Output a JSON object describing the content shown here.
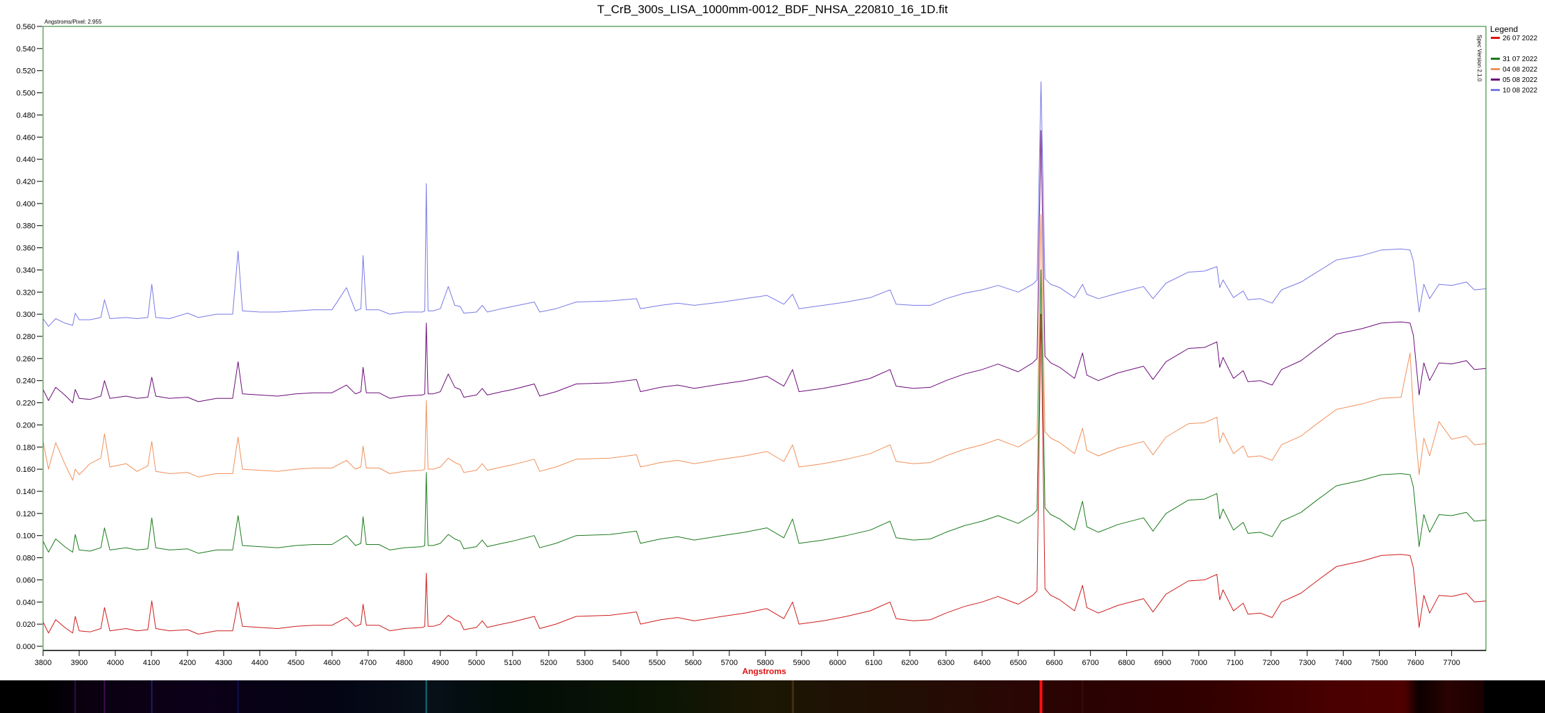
{
  "chart_data": {
    "type": "line",
    "title": "T_CrB_300s_LISA_1000mm-0012_BDF_NHSA_220810_16_1D.fit",
    "xlabel": "Angstroms",
    "ylabel": "",
    "corner_note": "Angstroms/Pixel: 2.955",
    "version_note": "Spec Version 2.1.0",
    "legend_title": "Legend",
    "legend_position": "right",
    "grid": false,
    "xlim": [
      3800,
      7795
    ],
    "ylim": [
      0,
      0.56
    ],
    "x_ticks": [
      "3800",
      "3900",
      "4000",
      "4100",
      "4200",
      "4300",
      "4400",
      "4500",
      "4600",
      "4700",
      "4800",
      "4900",
      "5000",
      "5100",
      "5200",
      "5300",
      "5400",
      "5500",
      "5600",
      "5700",
      "5800",
      "5900",
      "6000",
      "6100",
      "6200",
      "6300",
      "6400",
      "6500",
      "6600",
      "6700",
      "6800",
      "6900",
      "7000",
      "7100",
      "7200",
      "7300",
      "7400",
      "7500",
      "7600",
      "7700"
    ],
    "y_ticks": [
      "0.000",
      "0.020",
      "0.040",
      "0.060",
      "0.080",
      "0.100",
      "0.120",
      "0.140",
      "0.160",
      "0.180",
      "0.200",
      "0.220",
      "0.240",
      "0.260",
      "0.280",
      "0.300",
      "0.320",
      "0.340",
      "0.360",
      "0.380",
      "0.400",
      "0.420",
      "0.440",
      "0.460",
      "0.480",
      "0.500",
      "0.520",
      "0.540",
      "0.560"
    ],
    "x": [
      3800,
      3815,
      3835,
      3860,
      3882,
      3889,
      3900,
      3930,
      3960,
      3970,
      3985,
      4030,
      4060,
      4090,
      4101,
      4112,
      4150,
      4200,
      4230,
      4280,
      4325,
      4340,
      4352,
      4400,
      4450,
      4500,
      4550,
      4600,
      4640,
      4665,
      4680,
      4686,
      4695,
      4730,
      4760,
      4800,
      4850,
      4857,
      4861,
      4866,
      4880,
      4900,
      4922,
      4940,
      4955,
      4965,
      5000,
      5016,
      5030,
      5070,
      5100,
      5160,
      5175,
      5220,
      5276,
      5370,
      5443,
      5454,
      5510,
      5557,
      5603,
      5680,
      5743,
      5804,
      5851,
      5875,
      5893,
      5960,
      6024,
      6090,
      6145,
      6162,
      6210,
      6257,
      6300,
      6351,
      6400,
      6444,
      6500,
      6540,
      6552,
      6563,
      6574,
      6590,
      6615,
      6656,
      6678,
      6690,
      6722,
      6776,
      6847,
      6873,
      6909,
      6971,
      7016,
      7050,
      7058,
      7067,
      7096,
      7123,
      7136,
      7170,
      7203,
      7229,
      7283,
      7327,
      7381,
      7452,
      7505,
      7560,
      7585,
      7594,
      7610,
      7623,
      7639,
      7665,
      7700,
      7741,
      7763,
      7795
    ],
    "series": [
      {
        "name": "26 07 2022",
        "color": "#cc1a1a",
        "values": [
          0.022,
          0.012,
          0.024,
          0.017,
          0.012,
          0.027,
          0.014,
          0.013,
          0.016,
          0.035,
          0.014,
          0.016,
          0.014,
          0.015,
          0.041,
          0.016,
          0.014,
          0.015,
          0.011,
          0.014,
          0.014,
          0.04,
          0.018,
          0.017,
          0.016,
          0.018,
          0.019,
          0.019,
          0.026,
          0.018,
          0.02,
          0.038,
          0.019,
          0.019,
          0.014,
          0.016,
          0.017,
          0.018,
          0.066,
          0.018,
          0.018,
          0.02,
          0.028,
          0.024,
          0.022,
          0.015,
          0.017,
          0.023,
          0.017,
          0.02,
          0.022,
          0.027,
          0.016,
          0.02,
          0.027,
          0.028,
          0.031,
          0.02,
          0.024,
          0.026,
          0.023,
          0.027,
          0.03,
          0.034,
          0.025,
          0.04,
          0.02,
          0.023,
          0.027,
          0.032,
          0.04,
          0.025,
          0.023,
          0.024,
          0.03,
          0.036,
          0.04,
          0.045,
          0.038,
          0.046,
          0.05,
          0.3,
          0.052,
          0.046,
          0.042,
          0.032,
          0.055,
          0.035,
          0.03,
          0.037,
          0.043,
          0.031,
          0.047,
          0.059,
          0.06,
          0.065,
          0.042,
          0.051,
          0.032,
          0.039,
          0.029,
          0.03,
          0.026,
          0.04,
          0.048,
          0.059,
          0.072,
          0.077,
          0.082,
          0.083,
          0.082,
          0.071,
          0.017,
          0.046,
          0.03,
          0.046,
          0.045,
          0.048,
          0.04,
          0.041
        ]
      },
      {
        "name": "31 07 2022",
        "color": "#1a7a1a",
        "values": [
          0.095,
          0.085,
          0.097,
          0.09,
          0.085,
          0.101,
          0.087,
          0.086,
          0.089,
          0.107,
          0.087,
          0.089,
          0.087,
          0.088,
          0.116,
          0.089,
          0.087,
          0.088,
          0.084,
          0.087,
          0.087,
          0.118,
          0.091,
          0.09,
          0.089,
          0.091,
          0.092,
          0.092,
          0.1,
          0.091,
          0.093,
          0.117,
          0.092,
          0.092,
          0.087,
          0.089,
          0.09,
          0.091,
          0.157,
          0.091,
          0.091,
          0.093,
          0.101,
          0.097,
          0.095,
          0.088,
          0.09,
          0.096,
          0.09,
          0.093,
          0.095,
          0.1,
          0.089,
          0.093,
          0.1,
          0.101,
          0.104,
          0.093,
          0.097,
          0.099,
          0.096,
          0.1,
          0.103,
          0.107,
          0.098,
          0.115,
          0.093,
          0.096,
          0.1,
          0.105,
          0.113,
          0.098,
          0.096,
          0.097,
          0.103,
          0.109,
          0.113,
          0.118,
          0.111,
          0.119,
          0.123,
          0.34,
          0.125,
          0.119,
          0.115,
          0.105,
          0.131,
          0.108,
          0.103,
          0.11,
          0.116,
          0.104,
          0.12,
          0.132,
          0.133,
          0.138,
          0.115,
          0.124,
          0.105,
          0.112,
          0.102,
          0.103,
          0.099,
          0.113,
          0.121,
          0.132,
          0.145,
          0.15,
          0.155,
          0.156,
          0.155,
          0.144,
          0.09,
          0.119,
          0.103,
          0.119,
          0.118,
          0.121,
          0.113,
          0.114
        ]
      },
      {
        "name": "04 08 2022",
        "color": "#f0905a",
        "values": [
          0.185,
          0.16,
          0.184,
          0.165,
          0.15,
          0.16,
          0.155,
          0.165,
          0.17,
          0.192,
          0.162,
          0.165,
          0.158,
          0.163,
          0.185,
          0.158,
          0.156,
          0.157,
          0.153,
          0.156,
          0.156,
          0.189,
          0.16,
          0.159,
          0.158,
          0.16,
          0.161,
          0.161,
          0.168,
          0.16,
          0.162,
          0.181,
          0.161,
          0.161,
          0.156,
          0.158,
          0.159,
          0.16,
          0.222,
          0.16,
          0.16,
          0.162,
          0.17,
          0.166,
          0.164,
          0.157,
          0.159,
          0.165,
          0.159,
          0.162,
          0.164,
          0.169,
          0.158,
          0.162,
          0.169,
          0.17,
          0.173,
          0.162,
          0.166,
          0.168,
          0.165,
          0.169,
          0.172,
          0.176,
          0.167,
          0.182,
          0.162,
          0.165,
          0.169,
          0.174,
          0.182,
          0.167,
          0.165,
          0.166,
          0.172,
          0.178,
          0.182,
          0.187,
          0.18,
          0.188,
          0.192,
          0.39,
          0.194,
          0.188,
          0.184,
          0.174,
          0.197,
          0.177,
          0.172,
          0.179,
          0.185,
          0.173,
          0.189,
          0.201,
          0.202,
          0.207,
          0.184,
          0.193,
          0.174,
          0.181,
          0.171,
          0.172,
          0.168,
          0.182,
          0.19,
          0.201,
          0.214,
          0.219,
          0.224,
          0.225,
          0.265,
          0.213,
          0.155,
          0.188,
          0.172,
          0.203,
          0.187,
          0.19,
          0.182,
          0.183
        ]
      },
      {
        "name": "05 08 2022",
        "color": "#6a0a78",
        "values": [
          0.232,
          0.222,
          0.234,
          0.227,
          0.22,
          0.232,
          0.224,
          0.223,
          0.226,
          0.24,
          0.224,
          0.226,
          0.224,
          0.225,
          0.243,
          0.226,
          0.224,
          0.225,
          0.221,
          0.224,
          0.224,
          0.257,
          0.228,
          0.227,
          0.226,
          0.228,
          0.229,
          0.229,
          0.236,
          0.228,
          0.23,
          0.252,
          0.229,
          0.229,
          0.224,
          0.226,
          0.227,
          0.228,
          0.292,
          0.228,
          0.228,
          0.23,
          0.246,
          0.234,
          0.232,
          0.225,
          0.227,
          0.233,
          0.227,
          0.23,
          0.232,
          0.237,
          0.226,
          0.23,
          0.237,
          0.238,
          0.241,
          0.23,
          0.234,
          0.236,
          0.233,
          0.237,
          0.24,
          0.244,
          0.235,
          0.25,
          0.23,
          0.233,
          0.237,
          0.242,
          0.25,
          0.235,
          0.233,
          0.234,
          0.24,
          0.246,
          0.25,
          0.255,
          0.248,
          0.256,
          0.26,
          0.466,
          0.262,
          0.256,
          0.252,
          0.242,
          0.265,
          0.245,
          0.24,
          0.247,
          0.253,
          0.241,
          0.257,
          0.269,
          0.27,
          0.275,
          0.252,
          0.261,
          0.242,
          0.249,
          0.239,
          0.24,
          0.236,
          0.25,
          0.258,
          0.269,
          0.282,
          0.287,
          0.292,
          0.293,
          0.292,
          0.281,
          0.227,
          0.256,
          0.24,
          0.256,
          0.255,
          0.258,
          0.25,
          0.251
        ]
      },
      {
        "name": "10 08 2022",
        "color": "#7878e6",
        "values": [
          0.296,
          0.289,
          0.296,
          0.292,
          0.29,
          0.301,
          0.295,
          0.295,
          0.297,
          0.313,
          0.296,
          0.297,
          0.296,
          0.297,
          0.327,
          0.297,
          0.296,
          0.301,
          0.297,
          0.3,
          0.3,
          0.357,
          0.303,
          0.302,
          0.302,
          0.303,
          0.304,
          0.304,
          0.324,
          0.303,
          0.305,
          0.353,
          0.304,
          0.304,
          0.3,
          0.302,
          0.302,
          0.303,
          0.418,
          0.303,
          0.303,
          0.305,
          0.325,
          0.308,
          0.307,
          0.301,
          0.302,
          0.308,
          0.302,
          0.305,
          0.307,
          0.311,
          0.302,
          0.305,
          0.311,
          0.312,
          0.314,
          0.305,
          0.308,
          0.31,
          0.308,
          0.311,
          0.314,
          0.317,
          0.309,
          0.318,
          0.305,
          0.308,
          0.311,
          0.315,
          0.322,
          0.309,
          0.308,
          0.308,
          0.314,
          0.319,
          0.322,
          0.326,
          0.32,
          0.327,
          0.331,
          0.51,
          0.332,
          0.327,
          0.324,
          0.315,
          0.327,
          0.318,
          0.314,
          0.319,
          0.325,
          0.314,
          0.328,
          0.338,
          0.339,
          0.343,
          0.324,
          0.331,
          0.315,
          0.321,
          0.313,
          0.314,
          0.31,
          0.322,
          0.329,
          0.338,
          0.349,
          0.353,
          0.358,
          0.359,
          0.358,
          0.348,
          0.302,
          0.327,
          0.314,
          0.327,
          0.326,
          0.329,
          0.322,
          0.323
        ]
      }
    ]
  },
  "colors": {
    "frame": "#1a7a1a",
    "axis_title": "#e01010",
    "legend_first_swatch": "#e01010"
  }
}
